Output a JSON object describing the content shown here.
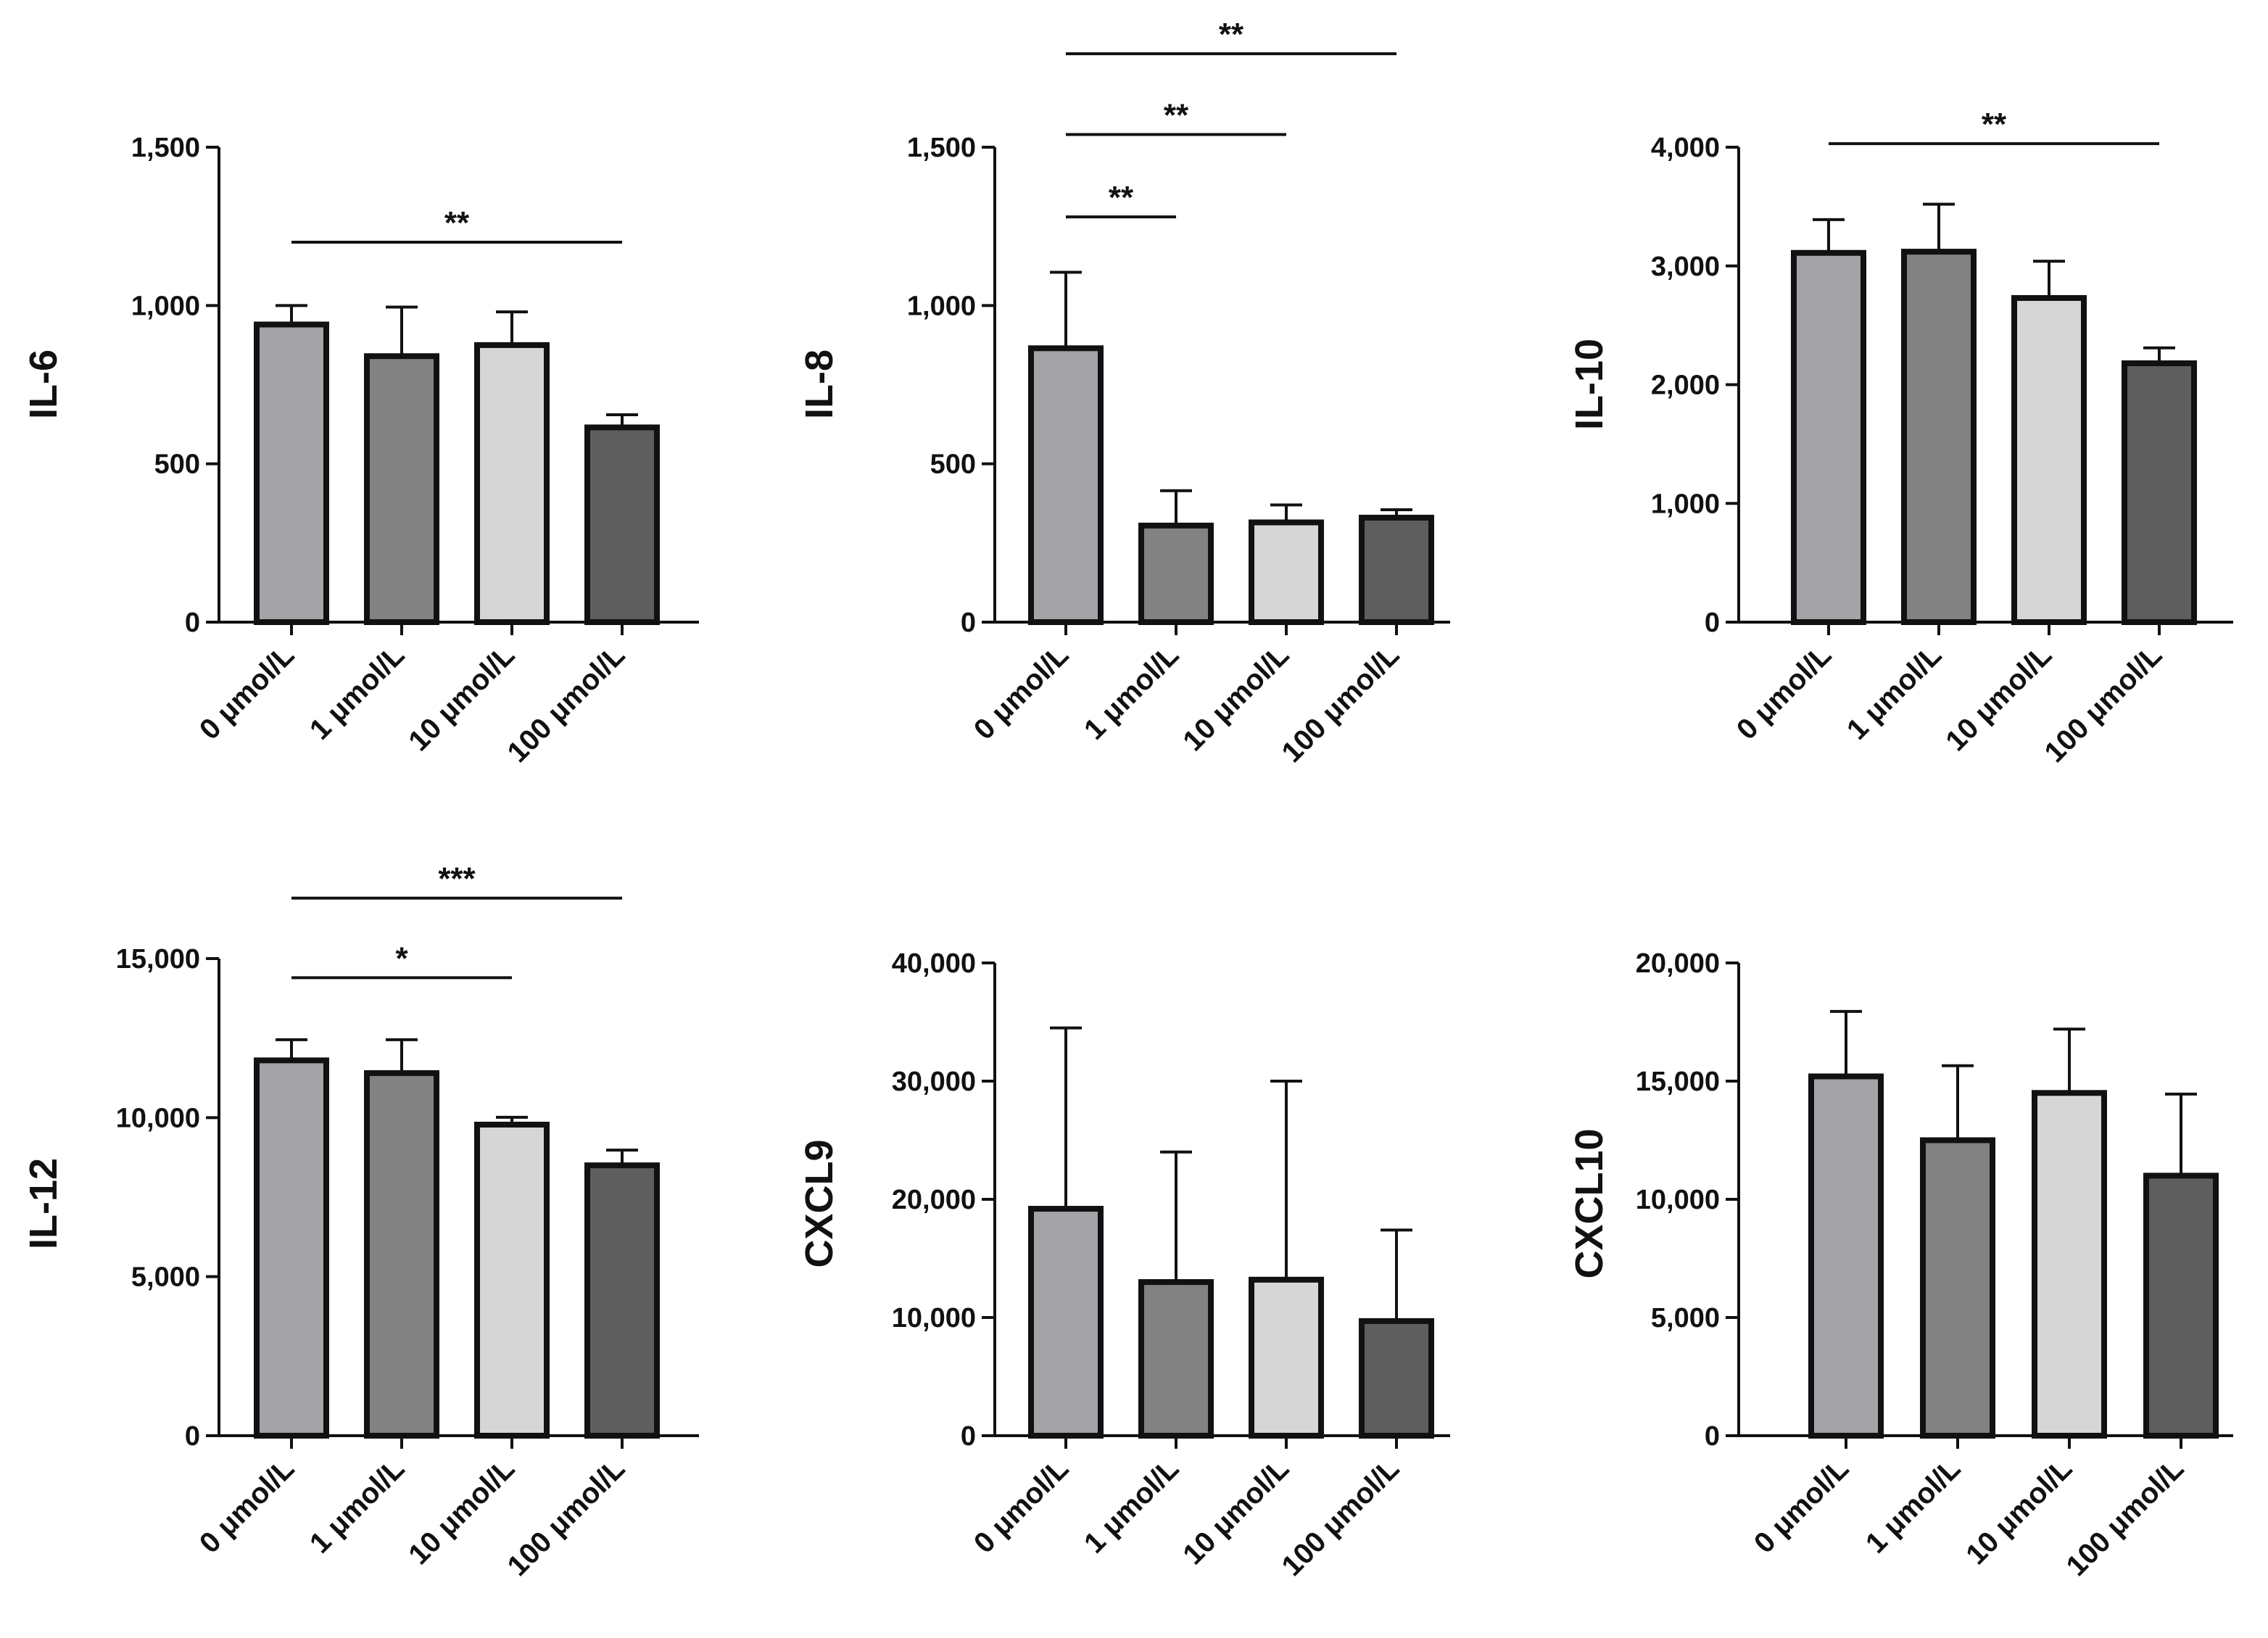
{
  "chart_data": [
    {
      "type": "bar",
      "ylabel": "IL-6",
      "categories": [
        "0 μmol/L",
        "1 μmol/L",
        "10 μmol/L",
        "100 μmol/L"
      ],
      "values": [
        940,
        840,
        875,
        615
      ],
      "error": [
        60,
        155,
        105,
        40
      ],
      "ylim": [
        0,
        1500
      ],
      "yticks": [
        0,
        500,
        1000,
        1500
      ],
      "ytick_labels": [
        "0",
        "500",
        "1,000",
        "1,500"
      ],
      "colors": [
        "#a3a3a8",
        "#828282",
        "#d6d6d6",
        "#5e5e5e"
      ],
      "significance": [
        {
          "from": 0,
          "to": 3,
          "label": "**",
          "level": 1200
        }
      ]
    },
    {
      "type": "bar",
      "ylabel": "IL-8",
      "categories": [
        "0 μmol/L",
        "1 μmol/L",
        "10 μmol/L",
        "100 μmol/L"
      ],
      "values": [
        865,
        305,
        315,
        330
      ],
      "error": [
        240,
        110,
        55,
        25
      ],
      "ylim": [
        0,
        1500
      ],
      "yticks": [
        0,
        500,
        1000,
        1500
      ],
      "ytick_labels": [
        "0",
        "500",
        "1,000",
        "1,500"
      ],
      "colors": [
        "#a3a3a8",
        "#828282",
        "#d6d6d6",
        "#5e5e5e"
      ],
      "significance": [
        {
          "from": 0,
          "to": 1,
          "label": "**",
          "level": 1280
        },
        {
          "from": 0,
          "to": 2,
          "label": "**",
          "level": 1540
        },
        {
          "from": 0,
          "to": 3,
          "label": "**",
          "level": 1795
        }
      ]
    },
    {
      "type": "bar",
      "ylabel": "IL-10",
      "categories": [
        "0 μmol/L",
        "1 μmol/L",
        "10 μmol/L",
        "100 μmol/L"
      ],
      "values": [
        3110,
        3120,
        2730,
        2180
      ],
      "error": [
        280,
        400,
        310,
        130
      ],
      "ylim": [
        0,
        4000
      ],
      "yticks": [
        0,
        1000,
        2000,
        3000,
        4000
      ],
      "ytick_labels": [
        "0",
        "1,000",
        "2,000",
        "3,000",
        "4,000"
      ],
      "colors": [
        "#a3a3a8",
        "#828282",
        "#d6d6d6",
        "#5e5e5e"
      ],
      "significance": [
        {
          "from": 0,
          "to": 3,
          "label": "**",
          "level": 4030
        }
      ]
    },
    {
      "type": "bar",
      "ylabel": "IL-12",
      "categories": [
        "0 μmol/L",
        "1 μmol/L",
        "10 μmol/L",
        "100 μmol/L"
      ],
      "values": [
        11800,
        11400,
        9780,
        8500
      ],
      "error": [
        650,
        1050,
        230,
        480
      ],
      "ylim": [
        0,
        15000
      ],
      "yticks": [
        0,
        5000,
        10000,
        15000
      ],
      "ytick_labels": [
        "0",
        "5,000",
        "10,000",
        "15,000"
      ],
      "colors": [
        "#a3a3a8",
        "#828282",
        "#d6d6d6",
        "#5e5e5e"
      ],
      "significance": [
        {
          "from": 0,
          "to": 2,
          "label": "*",
          "level": 14400
        },
        {
          "from": 0,
          "to": 3,
          "label": "***",
          "level": 16900
        }
      ]
    },
    {
      "type": "bar",
      "ylabel": "CXCL9",
      "categories": [
        "0 μmol/L",
        "1 μmol/L",
        "10 μmol/L",
        "100 μmol/L"
      ],
      "values": [
        19200,
        13000,
        13200,
        9700
      ],
      "error": [
        15300,
        11000,
        16800,
        7700
      ],
      "ylim": [
        0,
        40000
      ],
      "yticks": [
        0,
        10000,
        20000,
        30000,
        40000
      ],
      "ytick_labels": [
        "0",
        "10,000",
        "20,000",
        "30,000",
        "40,000"
      ],
      "colors": [
        "#a3a3a8",
        "#828282",
        "#d6d6d6",
        "#5e5e5e"
      ],
      "significance": []
    },
    {
      "type": "bar",
      "ylabel": "CXCL10",
      "categories": [
        "0 μmol/L",
        "1 μmol/L",
        "10 μmol/L",
        "100 μmol/L"
      ],
      "values": [
        15200,
        12500,
        14500,
        11000
      ],
      "error": [
        2750,
        3150,
        2700,
        3450
      ],
      "ylim": [
        0,
        20000
      ],
      "yticks": [
        0,
        5000,
        10000,
        15000,
        20000
      ],
      "ytick_labels": [
        "0",
        "5,000",
        "10,000",
        "15,000",
        "20,000"
      ],
      "colors": [
        "#a3a3a8",
        "#828282",
        "#d6d6d6",
        "#5e5e5e"
      ],
      "significance": []
    }
  ]
}
